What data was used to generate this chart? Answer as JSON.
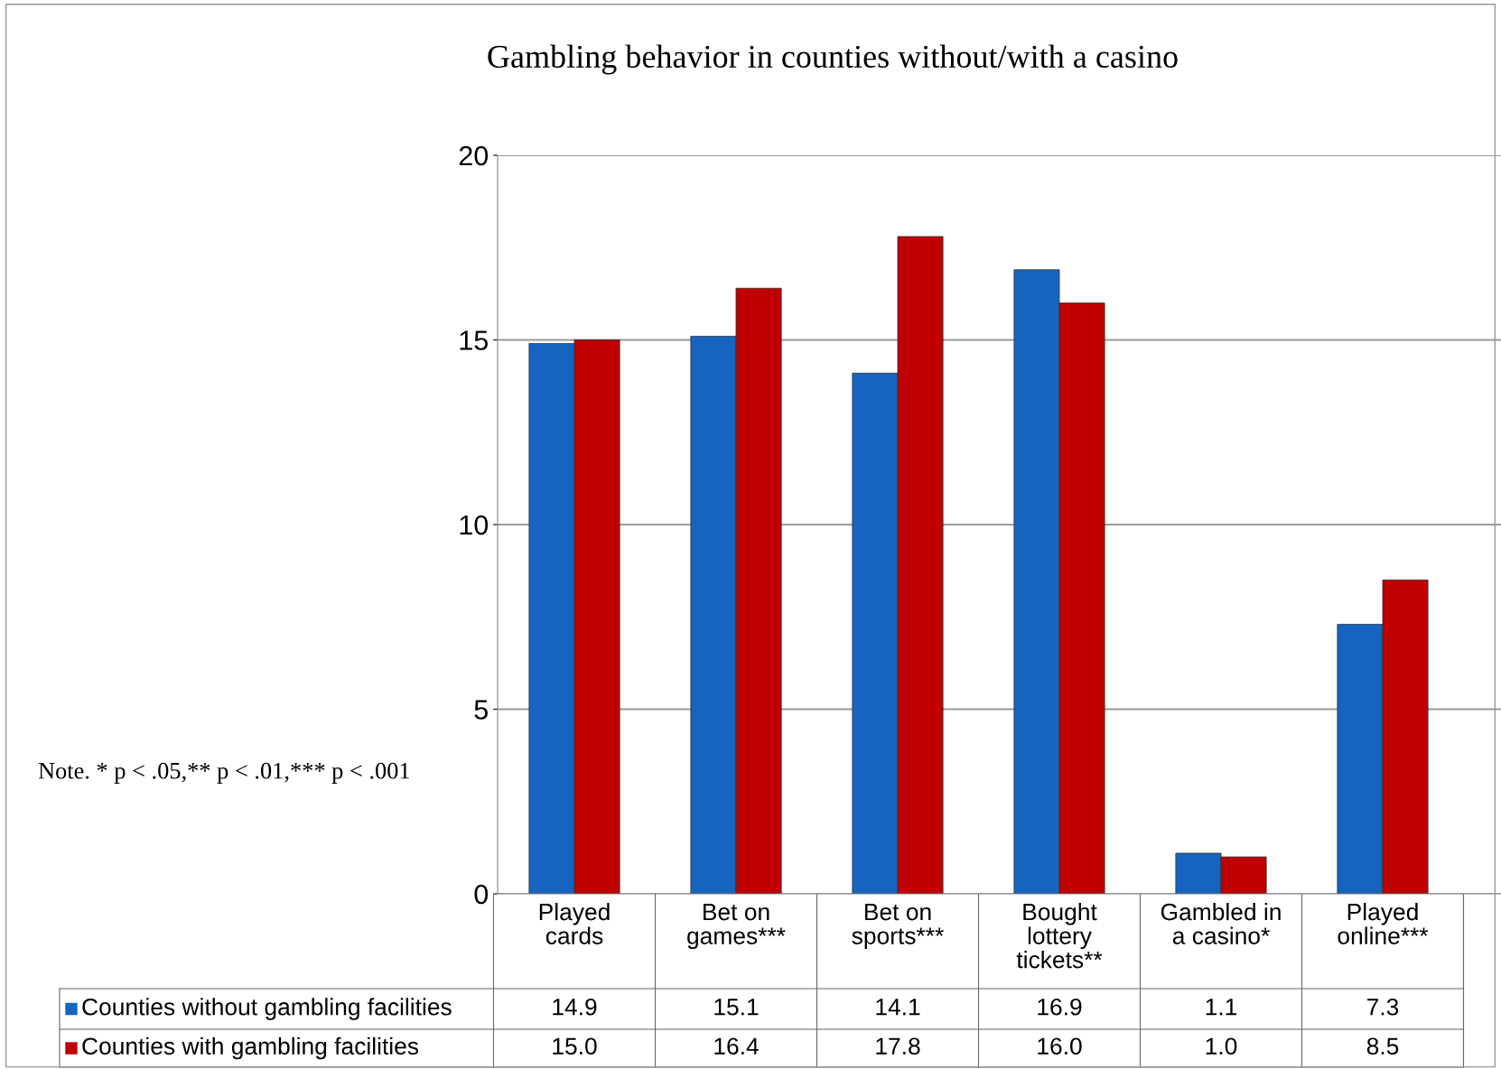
{
  "chart_data": {
    "type": "bar",
    "title": "Gambling behavior in counties without/with a casino",
    "categories": [
      "Played\ncards",
      "Bet on\ngames***",
      "Bet on\nsports***",
      "Bought\nlottery\ntickets**",
      "Gambled in\na casino*",
      "Played\nonline***"
    ],
    "series": [
      {
        "name": "Counties without gambling facilities",
        "color": "#1565c0",
        "values": [
          14.9,
          15.1,
          14.1,
          16.9,
          1.1,
          7.3
        ],
        "value_labels": [
          "14.9",
          "15.1",
          "14.1",
          "16.9",
          "1.1",
          "7.3"
        ]
      },
      {
        "name": "Counties with gambling facilities",
        "color": "#c00000",
        "values": [
          15.0,
          16.4,
          17.8,
          16.0,
          1.0,
          8.5
        ],
        "value_labels": [
          "15.0",
          "16.4",
          "17.8",
          "16.0",
          "1.0",
          "8.5"
        ]
      }
    ],
    "ylim": [
      0,
      20
    ],
    "yticks": [
      0,
      5,
      10,
      15,
      20
    ],
    "grid": "y",
    "legend": "bottom left",
    "annotations": [
      "Note. * p < .05,** p < .01,*** p < .001"
    ]
  }
}
